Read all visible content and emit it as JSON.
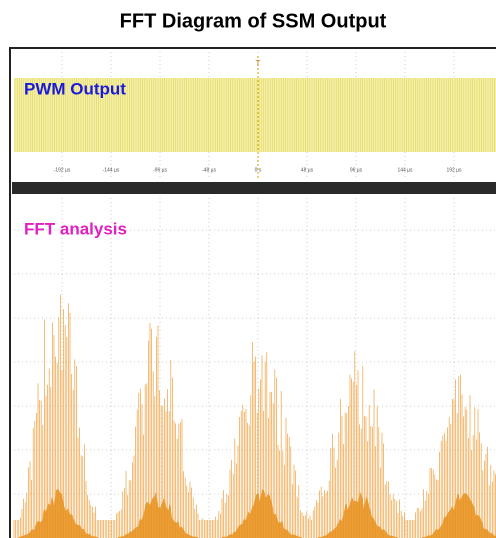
{
  "title": "FFT Diagram of SSM Output",
  "top_panel": {
    "label": "PWM Output",
    "trigger": "T",
    "time_labels": [
      "-192 µs",
      "-144 µs",
      "-96 µs",
      "-48 µs",
      "0 s",
      "48 µs",
      "96 µs",
      "144 µs",
      "192 µs"
    ]
  },
  "bottom_panel": {
    "label": "FFT analysis"
  }
}
